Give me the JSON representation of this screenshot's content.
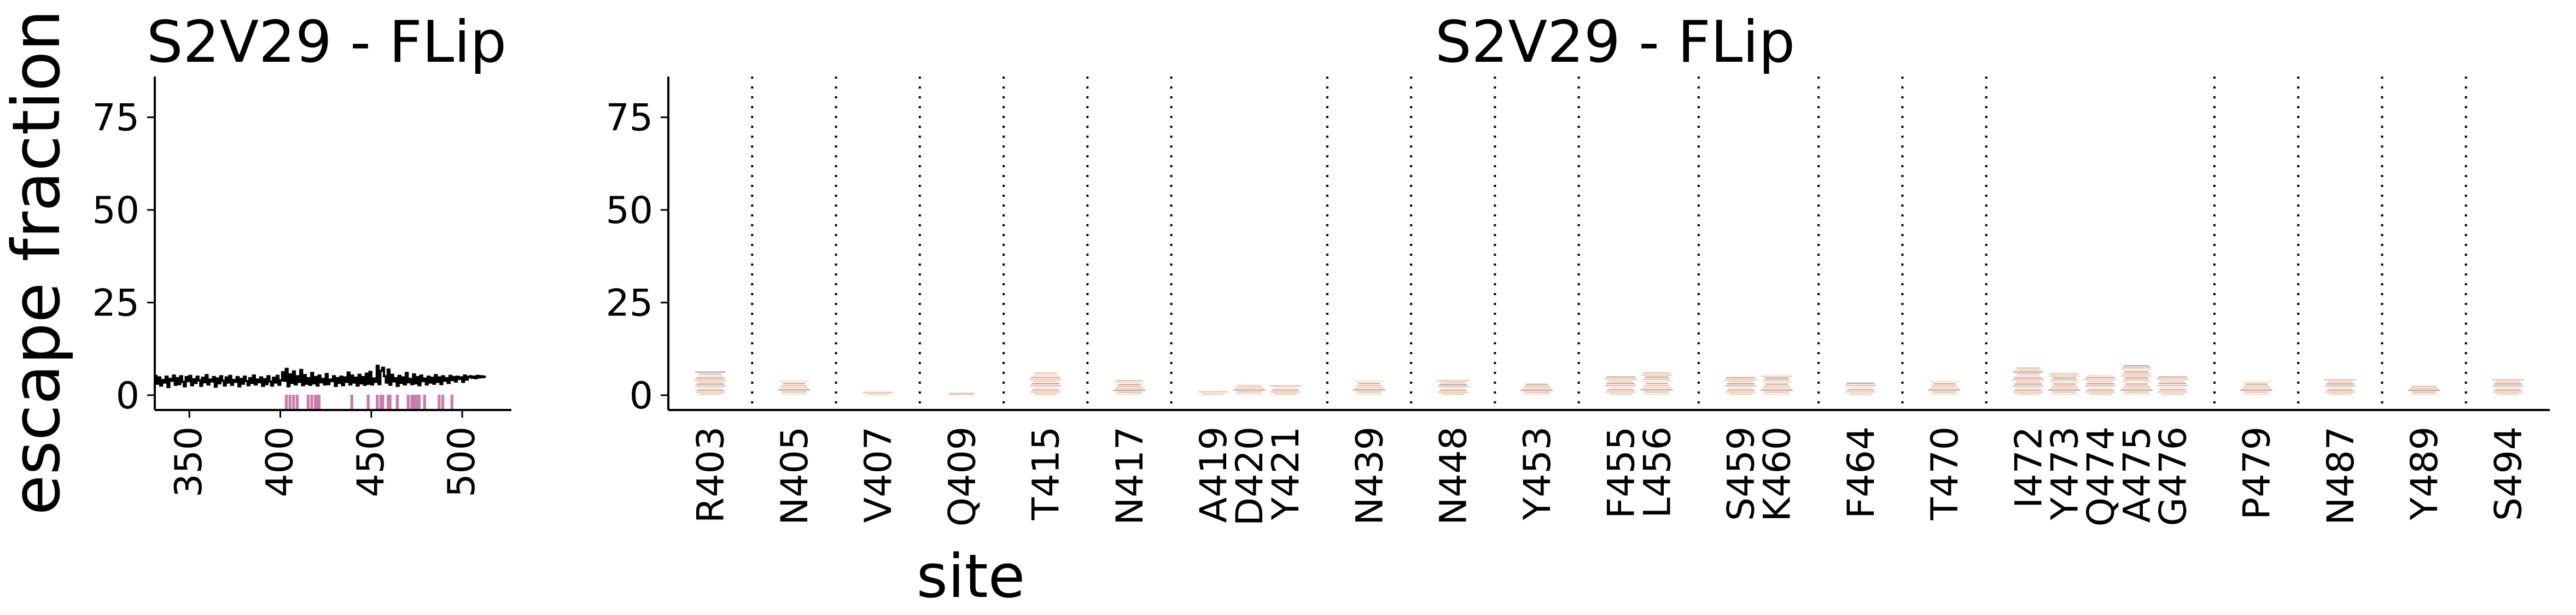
{
  "figure": {
    "ylabel": "escape fraction",
    "xlabel": "site"
  },
  "chart_data": [
    {
      "type": "line",
      "title": "S2V29 - FLip",
      "ylabel": "escape fraction",
      "xlabel": "",
      "xlim": [
        331,
        527
      ],
      "ylim": [
        -4,
        86
      ],
      "xticks": [
        350,
        400,
        450,
        500
      ],
      "yticks": [
        0,
        25,
        50,
        75
      ],
      "grid": false,
      "line_color": "#000000",
      "line_x_start": 331,
      "line_y": [
        5.2,
        3.1,
        4.8,
        2.6,
        4.1,
        3.4,
        5.0,
        2.2,
        4.4,
        3.9,
        5.3,
        2.8,
        4.6,
        3.0,
        5.1,
        3.6,
        2.4,
        4.9,
        3.8,
        5.2,
        2.7,
        4.3,
        3.3,
        5.0,
        4.0,
        2.5,
        4.7,
        3.5,
        5.4,
        2.9,
        4.2,
        3.7,
        4.9,
        2.3,
        4.5,
        3.2,
        5.1,
        3.9,
        2.6,
        4.8,
        3.4,
        5.2,
        2.8,
        4.1,
        3.6,
        4.9,
        2.4,
        4.4,
        3.1,
        5.0,
        3.8,
        2.7,
        4.6,
        3.3,
        5.3,
        2.9,
        4.2,
        3.5,
        4.8,
        2.5,
        4.3,
        3.0,
        5.1,
        3.7,
        2.6,
        4.7,
        3.4,
        5.2,
        2.8,
        4.0,
        6.2,
        3.9,
        7.1,
        2.4,
        5.6,
        3.3,
        6.4,
        2.9,
        5.1,
        3.6,
        6.8,
        2.7,
        5.4,
        3.1,
        4.6,
        2.8,
        6.0,
        3.2,
        4.9,
        2.6,
        5.3,
        3.5,
        4.4,
        2.9,
        5.7,
        3.0,
        4.2,
        3.8,
        5.1,
        2.5,
        4.6,
        3.3,
        5.0,
        2.7,
        4.8,
        3.6,
        6.1,
        2.9,
        5.3,
        3.4,
        4.7,
        2.6,
        5.5,
        3.2,
        4.9,
        2.8,
        5.8,
        3.1,
        6.3,
        2.9,
        4.5,
        3.6,
        7.9,
        3.0,
        6.6,
        7.4,
        5.1,
        3.4,
        6.9,
        2.8,
        5.5,
        3.7,
        4.6,
        2.5,
        5.2,
        3.3,
        4.8,
        2.9,
        6.0,
        3.5,
        4.4,
        3.0,
        5.6,
        3.2,
        4.9,
        2.7,
        5.3,
        3.8,
        4.5,
        2.9,
        5.0,
        3.4,
        4.7,
        3.1,
        5.4,
        3.6,
        4.8,
        3.0,
        5.1,
        3.9,
        4.6,
        3.3,
        5.2,
        4.1,
        4.9,
        3.7,
        5.0,
        4.4,
        4.8,
        3.6,
        5.3,
        4.2,
        4.9,
        5.1,
        4.7,
        5.0,
        4.6,
        5.2,
        4.8,
        5.1,
        4.9,
        5.0
      ],
      "highlight_color": "#c97daa",
      "highlight_sites": [
        403,
        405,
        407,
        409,
        415,
        417,
        419,
        420,
        421,
        439,
        448,
        453,
        455,
        456,
        459,
        460,
        464,
        470,
        472,
        473,
        474,
        475,
        476,
        479,
        487,
        489,
        494
      ]
    },
    {
      "type": "logo",
      "title": "S2V29 - FLip",
      "xlabel": "site",
      "ylim": [
        -4,
        86
      ],
      "yticks": [
        0,
        25,
        50,
        75
      ],
      "grid": false,
      "groups": [
        [
          "R403"
        ],
        [
          "N405"
        ],
        [
          "V407"
        ],
        [
          "Q409"
        ],
        [
          "T415"
        ],
        [
          "N417"
        ],
        [
          "A419",
          "D420",
          "Y421"
        ],
        [
          "N439"
        ],
        [
          "N448"
        ],
        [
          "Y453"
        ],
        [
          "F455",
          "L456"
        ],
        [
          "S459",
          "K460"
        ],
        [
          "F464"
        ],
        [
          "T470"
        ],
        [
          "I472",
          "Y473",
          "Q474",
          "A475",
          "G476"
        ],
        [
          "P479"
        ],
        [
          "N487"
        ],
        [
          "Y489"
        ],
        [
          "S494"
        ]
      ],
      "site_escape": [
        6.5,
        4.0,
        1.0,
        0.6,
        6.2,
        4.2,
        1.2,
        2.8,
        2.8,
        4.0,
        4.2,
        3.2,
        5.2,
        6.3,
        5.0,
        5.4,
        3.5,
        3.9,
        7.6,
        6.0,
        5.6,
        8.2,
        5.2,
        3.8,
        4.4,
        2.6,
        4.4
      ],
      "palette": [
        "#f0a35b",
        "#e98b6a",
        "#9b6f6a",
        "#f6c99a",
        "#c98a7a",
        "#7a6a6a"
      ]
    }
  ]
}
